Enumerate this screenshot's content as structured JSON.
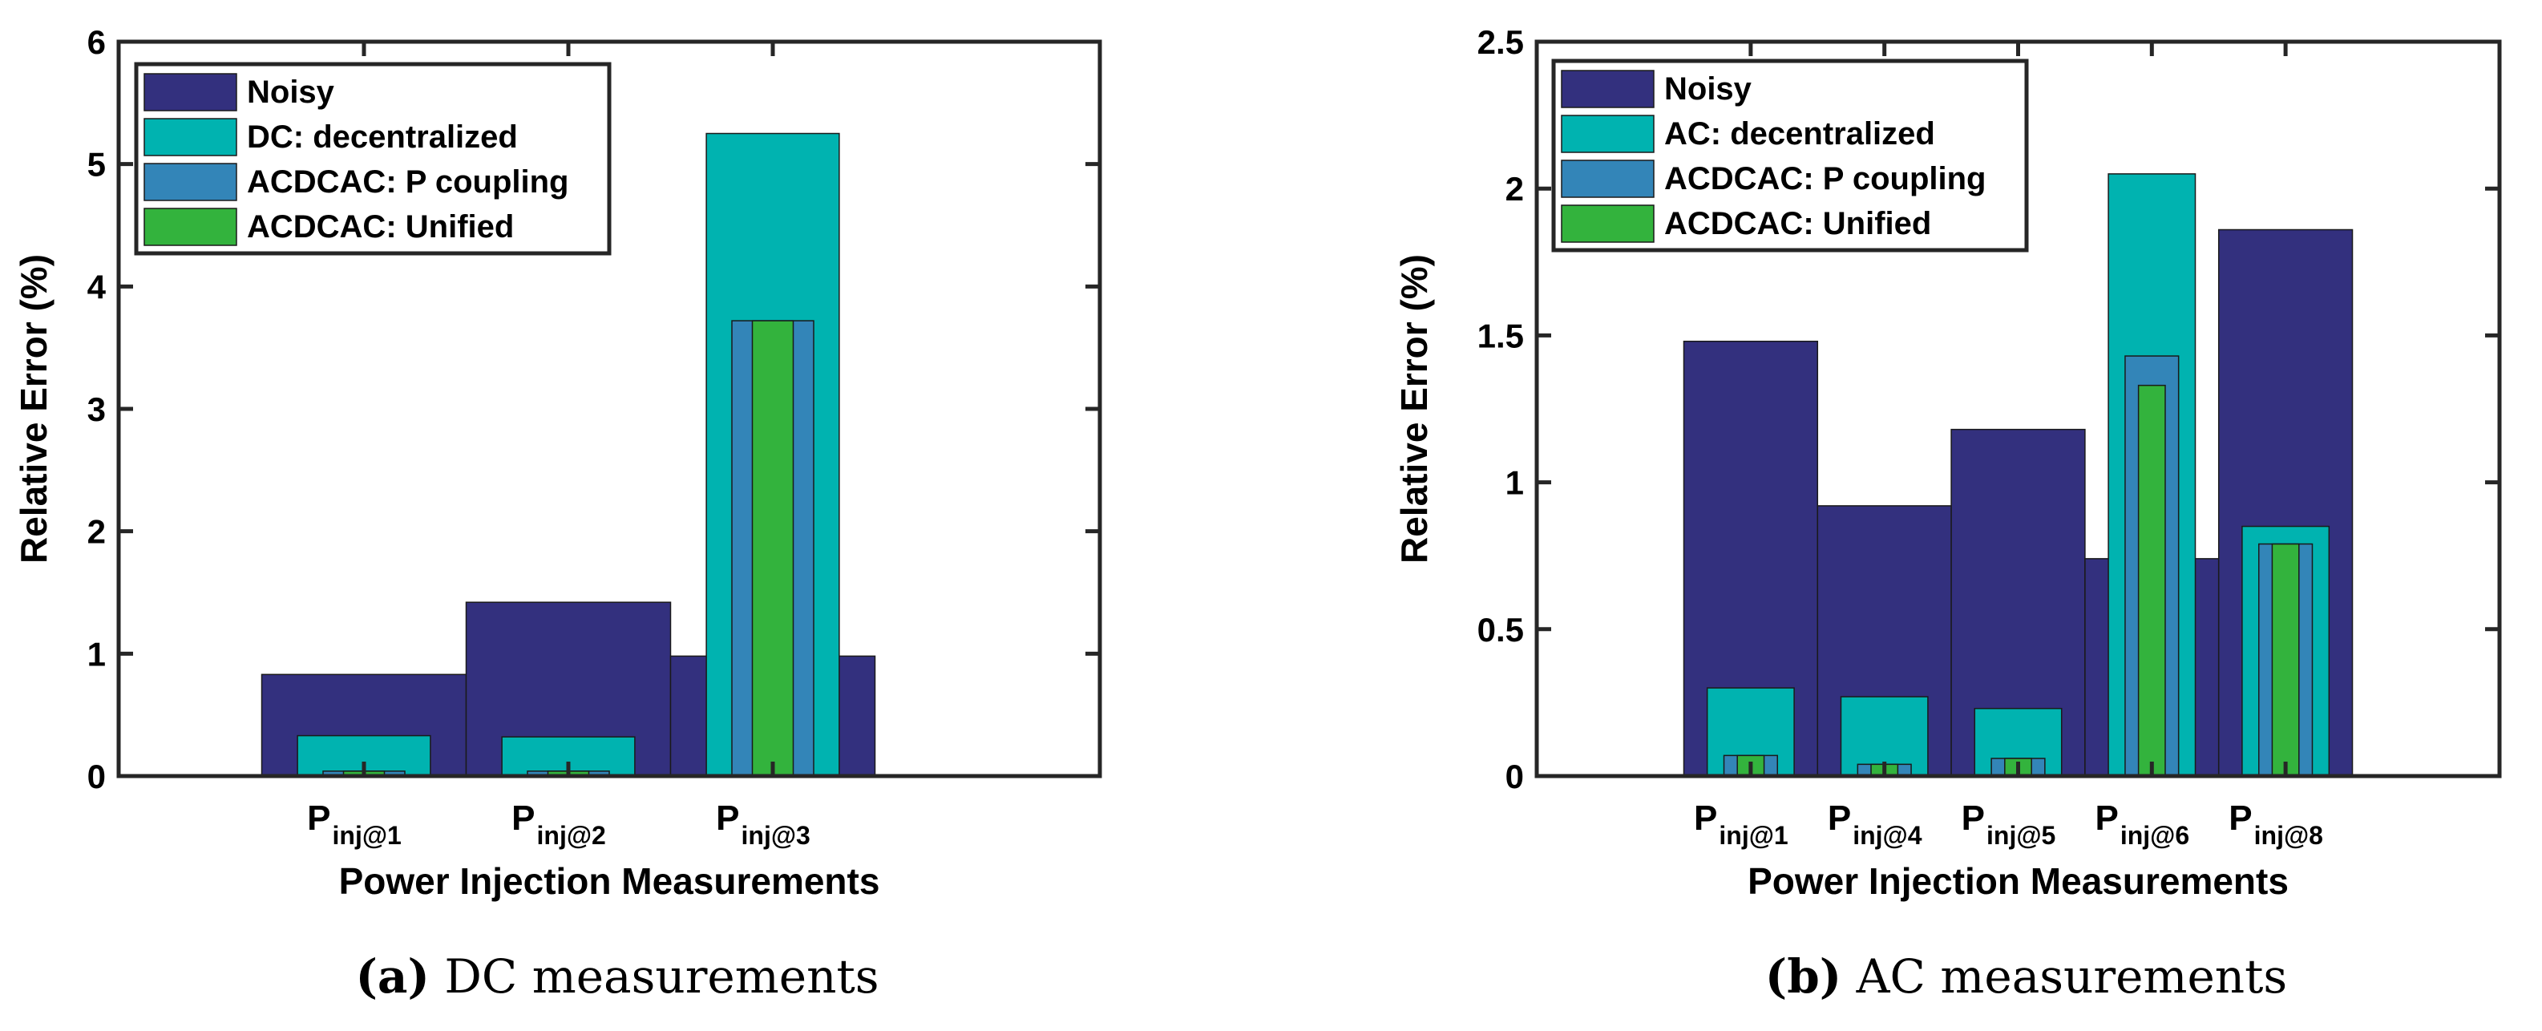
{
  "chart_data": [
    {
      "type": "bar",
      "title": "",
      "xlabel": "Power Injection Measurements",
      "ylabel": "Relative Error (%)",
      "ylim": [
        0,
        6
      ],
      "yticks": [
        0,
        1,
        2,
        3,
        4,
        5,
        6
      ],
      "x_positions": [
        1,
        2,
        3
      ],
      "xlim": [
        -0.2,
        4.6
      ],
      "categories": [
        {
          "main": "P",
          "sub": "inj@1"
        },
        {
          "main": "P",
          "sub": "inj@2"
        },
        {
          "main": "P",
          "sub": "inj@3"
        }
      ],
      "series": [
        {
          "name": "Noisy",
          "color": "#33307e",
          "width": 1.0,
          "values": [
            0.83,
            1.42,
            0.98
          ]
        },
        {
          "name": "DC: decentralized",
          "color": "#00b3b0",
          "width": 0.65,
          "values": [
            0.33,
            0.32,
            5.25
          ]
        },
        {
          "name": "ACDCAC: P coupling",
          "color": "#3385b8",
          "width": 0.4,
          "values": [
            0.04,
            0.04,
            3.72
          ]
        },
        {
          "name": "ACDCAC: Unified",
          "color": "#33b33d",
          "width": 0.2,
          "values": [
            0.04,
            0.04,
            3.72
          ]
        }
      ],
      "legend_position": "top-left",
      "caption": {
        "label": "(a)",
        "text": " DC measurements"
      }
    },
    {
      "type": "bar",
      "title": "",
      "xlabel": "Power Injection Measurements",
      "ylabel": "Relative Error (%)",
      "ylim": [
        0,
        2.5
      ],
      "yticks": [
        0,
        0.5,
        1,
        1.5,
        2,
        2.5
      ],
      "x_positions": [
        1,
        2,
        3,
        4,
        5
      ],
      "xlim": [
        -0.6,
        6.6
      ],
      "categories": [
        {
          "main": "P",
          "sub": "inj@1"
        },
        {
          "main": "P",
          "sub": "inj@4"
        },
        {
          "main": "P",
          "sub": "inj@5"
        },
        {
          "main": "P",
          "sub": "inj@6"
        },
        {
          "main": "P",
          "sub": "inj@8"
        }
      ],
      "series": [
        {
          "name": "Noisy",
          "color": "#33307e",
          "width": 1.0,
          "values": [
            1.48,
            0.92,
            1.18,
            0.74,
            1.86
          ]
        },
        {
          "name": "AC: decentralized",
          "color": "#00b3b0",
          "width": 0.65,
          "values": [
            0.3,
            0.27,
            0.23,
            2.05,
            0.85
          ]
        },
        {
          "name": "ACDCAC: P coupling",
          "color": "#3385b8",
          "width": 0.4,
          "values": [
            0.07,
            0.04,
            0.06,
            1.43,
            0.79
          ]
        },
        {
          "name": "ACDCAC: Unified",
          "color": "#33b33d",
          "width": 0.2,
          "values": [
            0.07,
            0.04,
            0.06,
            1.33,
            0.79
          ]
        }
      ],
      "legend_position": "top-left",
      "caption": {
        "label": "(b)",
        "text": " AC measurements"
      }
    }
  ]
}
